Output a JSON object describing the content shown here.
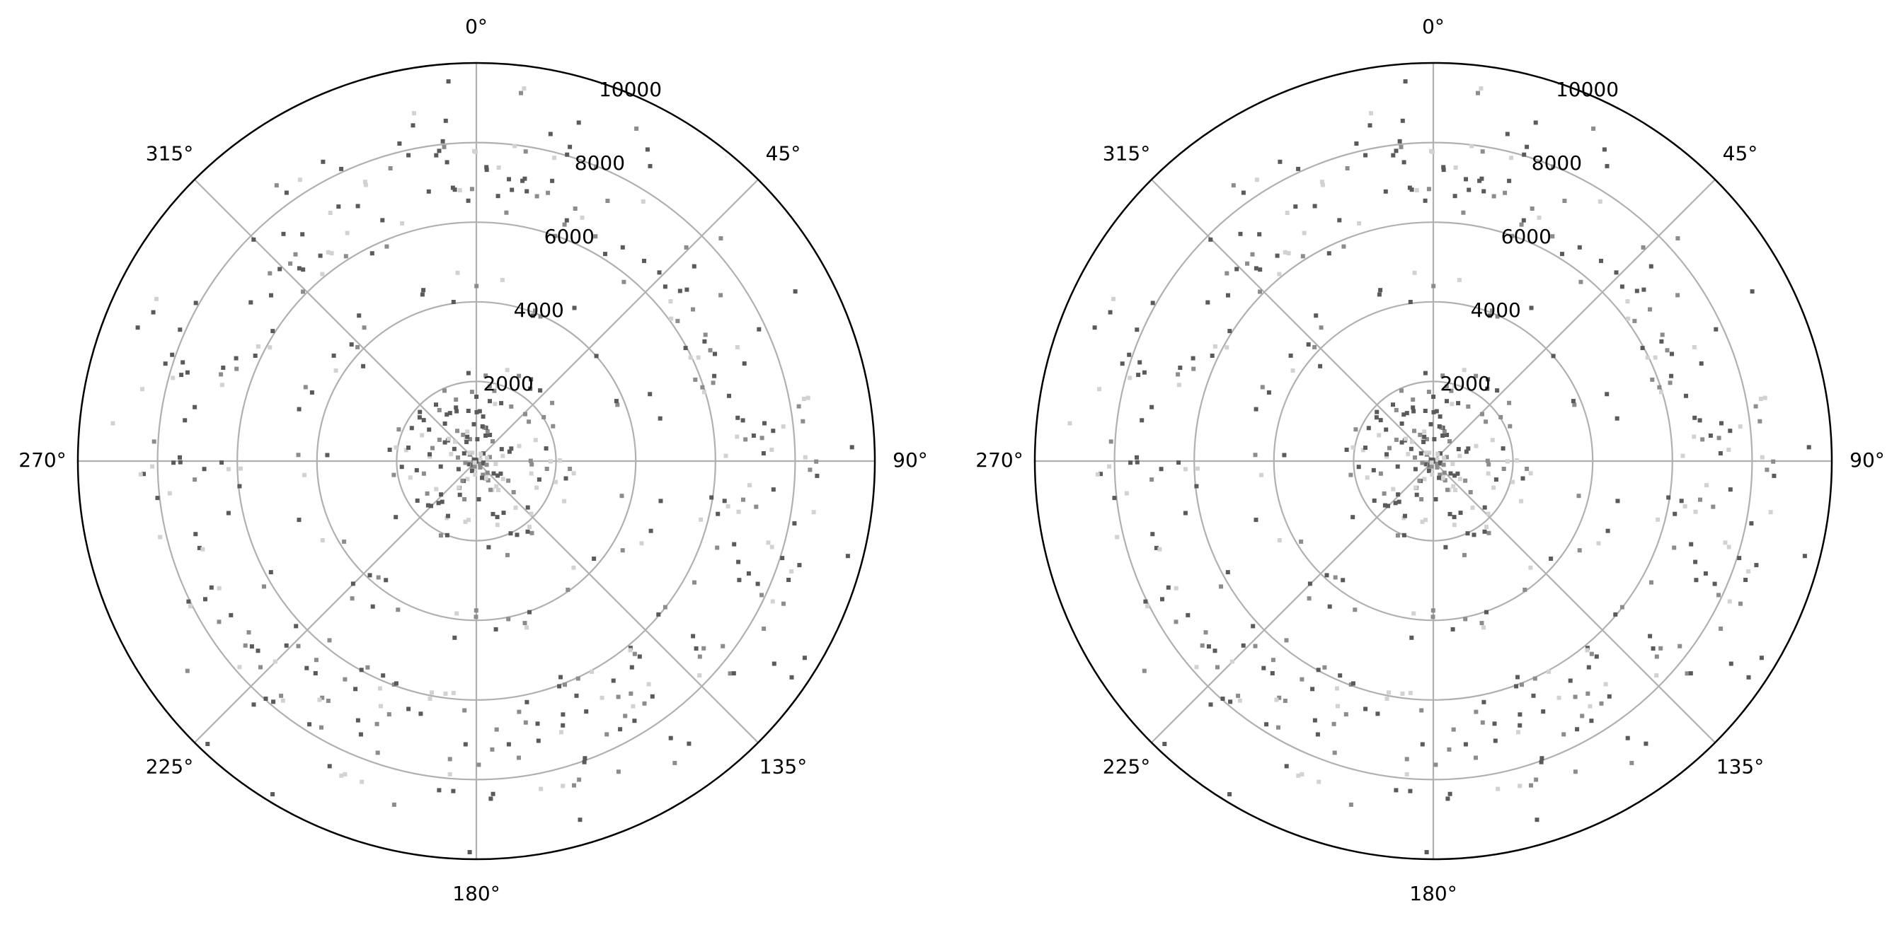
{
  "colors": {
    "grid": "#b0b0b0",
    "frame": "#000000",
    "background": "#ffffff",
    "point_dark": "#5a5a5a",
    "point_mid": "#8c8c8c",
    "point_light": "#d2d2d2"
  },
  "chart_data": [
    {
      "type": "scatter",
      "projection": "polar",
      "theta_direction": "clockwise",
      "theta_zero_location": "top",
      "theta_tick_labels": [
        "0°",
        "45°",
        "90°",
        "135°",
        "180°",
        "225°",
        "270°",
        "315°"
      ],
      "theta_ticks_deg": [
        0,
        45,
        90,
        135,
        180,
        225,
        270,
        315
      ],
      "r_ticks": [
        2000,
        4000,
        6000,
        8000,
        10000
      ],
      "r_tick_labels": [
        "2000",
        "4000",
        "6000",
        "8000",
        "10000"
      ],
      "r_label_angle_deg": 22.5,
      "rlim": [
        0,
        10000
      ],
      "grid": true,
      "points_description": "scatter of small gray square markers clustered in three bands: r≈0–2500, r≈3500–5000, r≈6000–8500, plus a few near 9000–10000",
      "series": [
        {
          "marker": "square",
          "rings": [
            {
              "r_min": 0,
              "r_max": 2500,
              "count": 190
            },
            {
              "r_min": 3600,
              "r_max": 4800,
              "count": 55
            },
            {
              "r_min": 5800,
              "r_max": 8600,
              "count": 320
            },
            {
              "r_min": 8800,
              "r_max": 9900,
              "count": 25
            }
          ]
        }
      ]
    },
    {
      "type": "scatter",
      "projection": "polar",
      "theta_direction": "clockwise",
      "theta_zero_location": "top",
      "theta_tick_labels": [
        "0°",
        "45°",
        "90°",
        "135°",
        "180°",
        "225°",
        "270°",
        "315°"
      ],
      "theta_ticks_deg": [
        0,
        45,
        90,
        135,
        180,
        225,
        270,
        315
      ],
      "r_ticks": [
        2000,
        4000,
        6000,
        8000,
        10000
      ],
      "r_tick_labels": [
        "2000",
        "4000",
        "6000",
        "8000",
        "10000"
      ],
      "r_label_angle_deg": 22.5,
      "rlim": [
        0,
        10000
      ],
      "grid": true,
      "points_description": "identical scatter to the left panel",
      "series": [
        {
          "marker": "square",
          "rings": [
            {
              "r_min": 0,
              "r_max": 2500,
              "count": 190
            },
            {
              "r_min": 3600,
              "r_max": 4800,
              "count": 55
            },
            {
              "r_min": 5800,
              "r_max": 8600,
              "count": 320
            },
            {
              "r_min": 8800,
              "r_max": 9900,
              "count": 25
            }
          ]
        }
      ]
    }
  ]
}
